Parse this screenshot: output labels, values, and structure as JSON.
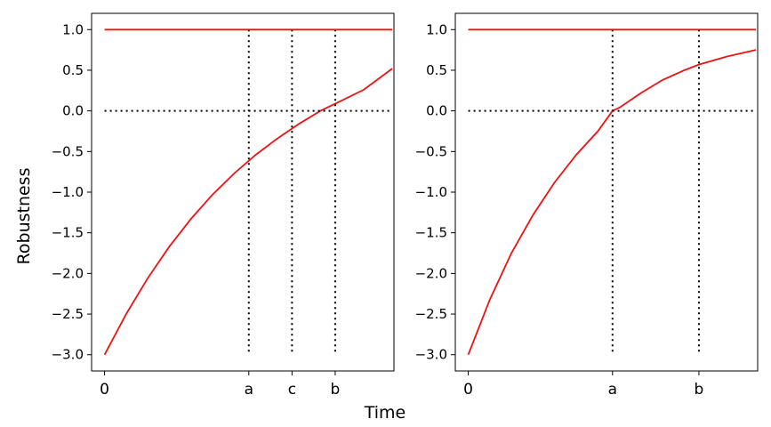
{
  "figure": {
    "xlabel": "Time",
    "ylabel": "Robustness"
  },
  "chart_data": [
    {
      "type": "line",
      "panel": "left",
      "ylim": [
        -3.2,
        1.2
      ],
      "xlim": [
        -0.15,
        3.35
      ],
      "yticks": [
        1.0,
        0.5,
        0.0,
        -0.5,
        -1.0,
        -1.5,
        -2.0,
        -2.5,
        -3.0
      ],
      "ytick_labels": [
        "1.0",
        "0.5",
        "0.0",
        "−0.5",
        "−1.0",
        "−1.5",
        "−2.0",
        "−2.5",
        "−3.0"
      ],
      "xticks": [
        {
          "label": "0",
          "x": 0
        },
        {
          "label": "a",
          "x": 1.67
        },
        {
          "label": "c",
          "x": 2.17
        },
        {
          "label": "b",
          "x": 2.67
        }
      ],
      "grid": false,
      "series": [
        {
          "color": "#ee1111",
          "style": "solid",
          "x": [
            0,
            3.33
          ],
          "y": [
            1.0,
            1.0
          ]
        },
        {
          "color": "#ee1111",
          "style": "solid",
          "x": [
            0,
            0.25,
            0.5,
            0.75,
            1.0,
            1.25,
            1.5,
            1.75,
            2.0,
            2.25,
            2.5,
            2.75,
            3.0,
            3.33
          ],
          "y": [
            -3.0,
            -2.5,
            -2.06,
            -1.67,
            -1.33,
            -1.03,
            -0.77,
            -0.54,
            -0.34,
            -0.16,
            0.0,
            0.13,
            0.26,
            0.52
          ]
        },
        {
          "color": "#000000",
          "style": "dotted",
          "x": [
            0,
            3.33
          ],
          "y": [
            0.0,
            0.0
          ]
        }
      ],
      "vlines": [
        {
          "x": 1.67,
          "ymin": -3.0,
          "ymax": 1.0
        },
        {
          "x": 2.17,
          "ymin": -3.0,
          "ymax": 1.0
        },
        {
          "x": 2.67,
          "ymin": -3.0,
          "ymax": 1.0
        }
      ]
    },
    {
      "type": "line",
      "panel": "right",
      "ylim": [
        -3.2,
        1.2
      ],
      "xlim": [
        -0.15,
        3.35
      ],
      "yticks": [
        1.0,
        0.5,
        0.0,
        -0.5,
        -1.0,
        -1.5,
        -2.0,
        -2.5,
        -3.0
      ],
      "ytick_labels": [
        "1.0",
        "0.5",
        "0.0",
        "−0.5",
        "−1.0",
        "−1.5",
        "−2.0",
        "−2.5",
        "−3.0"
      ],
      "xticks": [
        {
          "label": "0",
          "x": 0
        },
        {
          "label": "a",
          "x": 1.67
        },
        {
          "label": "b",
          "x": 2.67
        }
      ],
      "grid": false,
      "series": [
        {
          "color": "#ee1111",
          "style": "solid",
          "x": [
            0,
            3.33
          ],
          "y": [
            1.0,
            1.0
          ]
        },
        {
          "color": "#ee1111",
          "style": "solid",
          "x": [
            0,
            0.25,
            0.5,
            0.75,
            1.0,
            1.25,
            1.5,
            1.67,
            1.75,
            2.0,
            2.25,
            2.5,
            2.67,
            3.0,
            3.33
          ],
          "y": [
            -3.0,
            -2.32,
            -1.75,
            -1.28,
            -0.88,
            -0.54,
            -0.25,
            0.0,
            0.04,
            0.22,
            0.38,
            0.5,
            0.57,
            0.67,
            0.75
          ]
        },
        {
          "color": "#000000",
          "style": "dotted",
          "x": [
            0,
            3.33
          ],
          "y": [
            0.0,
            0.0
          ]
        }
      ],
      "vlines": [
        {
          "x": 1.67,
          "ymin": -3.0,
          "ymax": 1.0
        },
        {
          "x": 2.67,
          "ymin": -3.0,
          "ymax": 1.0
        }
      ]
    }
  ]
}
